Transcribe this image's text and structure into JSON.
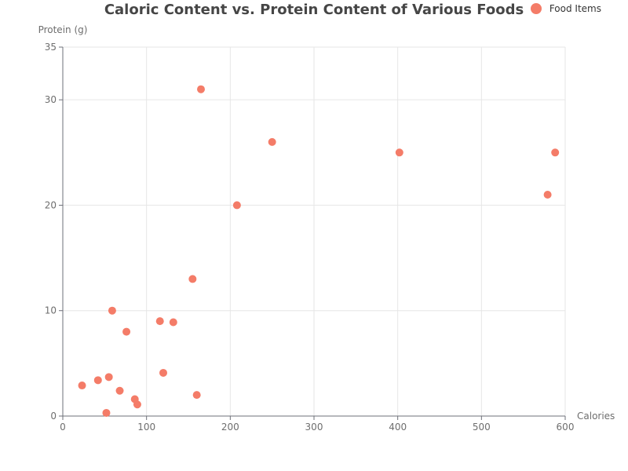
{
  "chart_data": {
    "type": "scatter",
    "title": "Caloric Content vs. Protein Content of Various Foods",
    "xlabel": "Calories",
    "ylabel": "Protein (g)",
    "xlim": [
      0,
      600
    ],
    "ylim": [
      0,
      35
    ],
    "xticks": [
      0,
      100,
      200,
      300,
      400,
      500,
      600
    ],
    "yticks": [
      0,
      10,
      20,
      30,
      35
    ],
    "grid": true,
    "legend_position": "top-right",
    "series": [
      {
        "name": "Food Items",
        "color": "#f47c68",
        "points": [
          {
            "x": 165,
            "y": 31
          },
          {
            "x": 250,
            "y": 26
          },
          {
            "x": 402,
            "y": 25
          },
          {
            "x": 588,
            "y": 25
          },
          {
            "x": 579,
            "y": 21
          },
          {
            "x": 208,
            "y": 20
          },
          {
            "x": 155,
            "y": 13
          },
          {
            "x": 59,
            "y": 10
          },
          {
            "x": 116,
            "y": 9
          },
          {
            "x": 132,
            "y": 8.9
          },
          {
            "x": 76,
            "y": 8
          },
          {
            "x": 120,
            "y": 4.1
          },
          {
            "x": 55,
            "y": 3.7
          },
          {
            "x": 42,
            "y": 3.4
          },
          {
            "x": 23,
            "y": 2.9
          },
          {
            "x": 68,
            "y": 2.4
          },
          {
            "x": 160,
            "y": 2
          },
          {
            "x": 86,
            "y": 1.6
          },
          {
            "x": 89,
            "y": 1.1
          },
          {
            "x": 52,
            "y": 0.3
          }
        ]
      }
    ]
  }
}
